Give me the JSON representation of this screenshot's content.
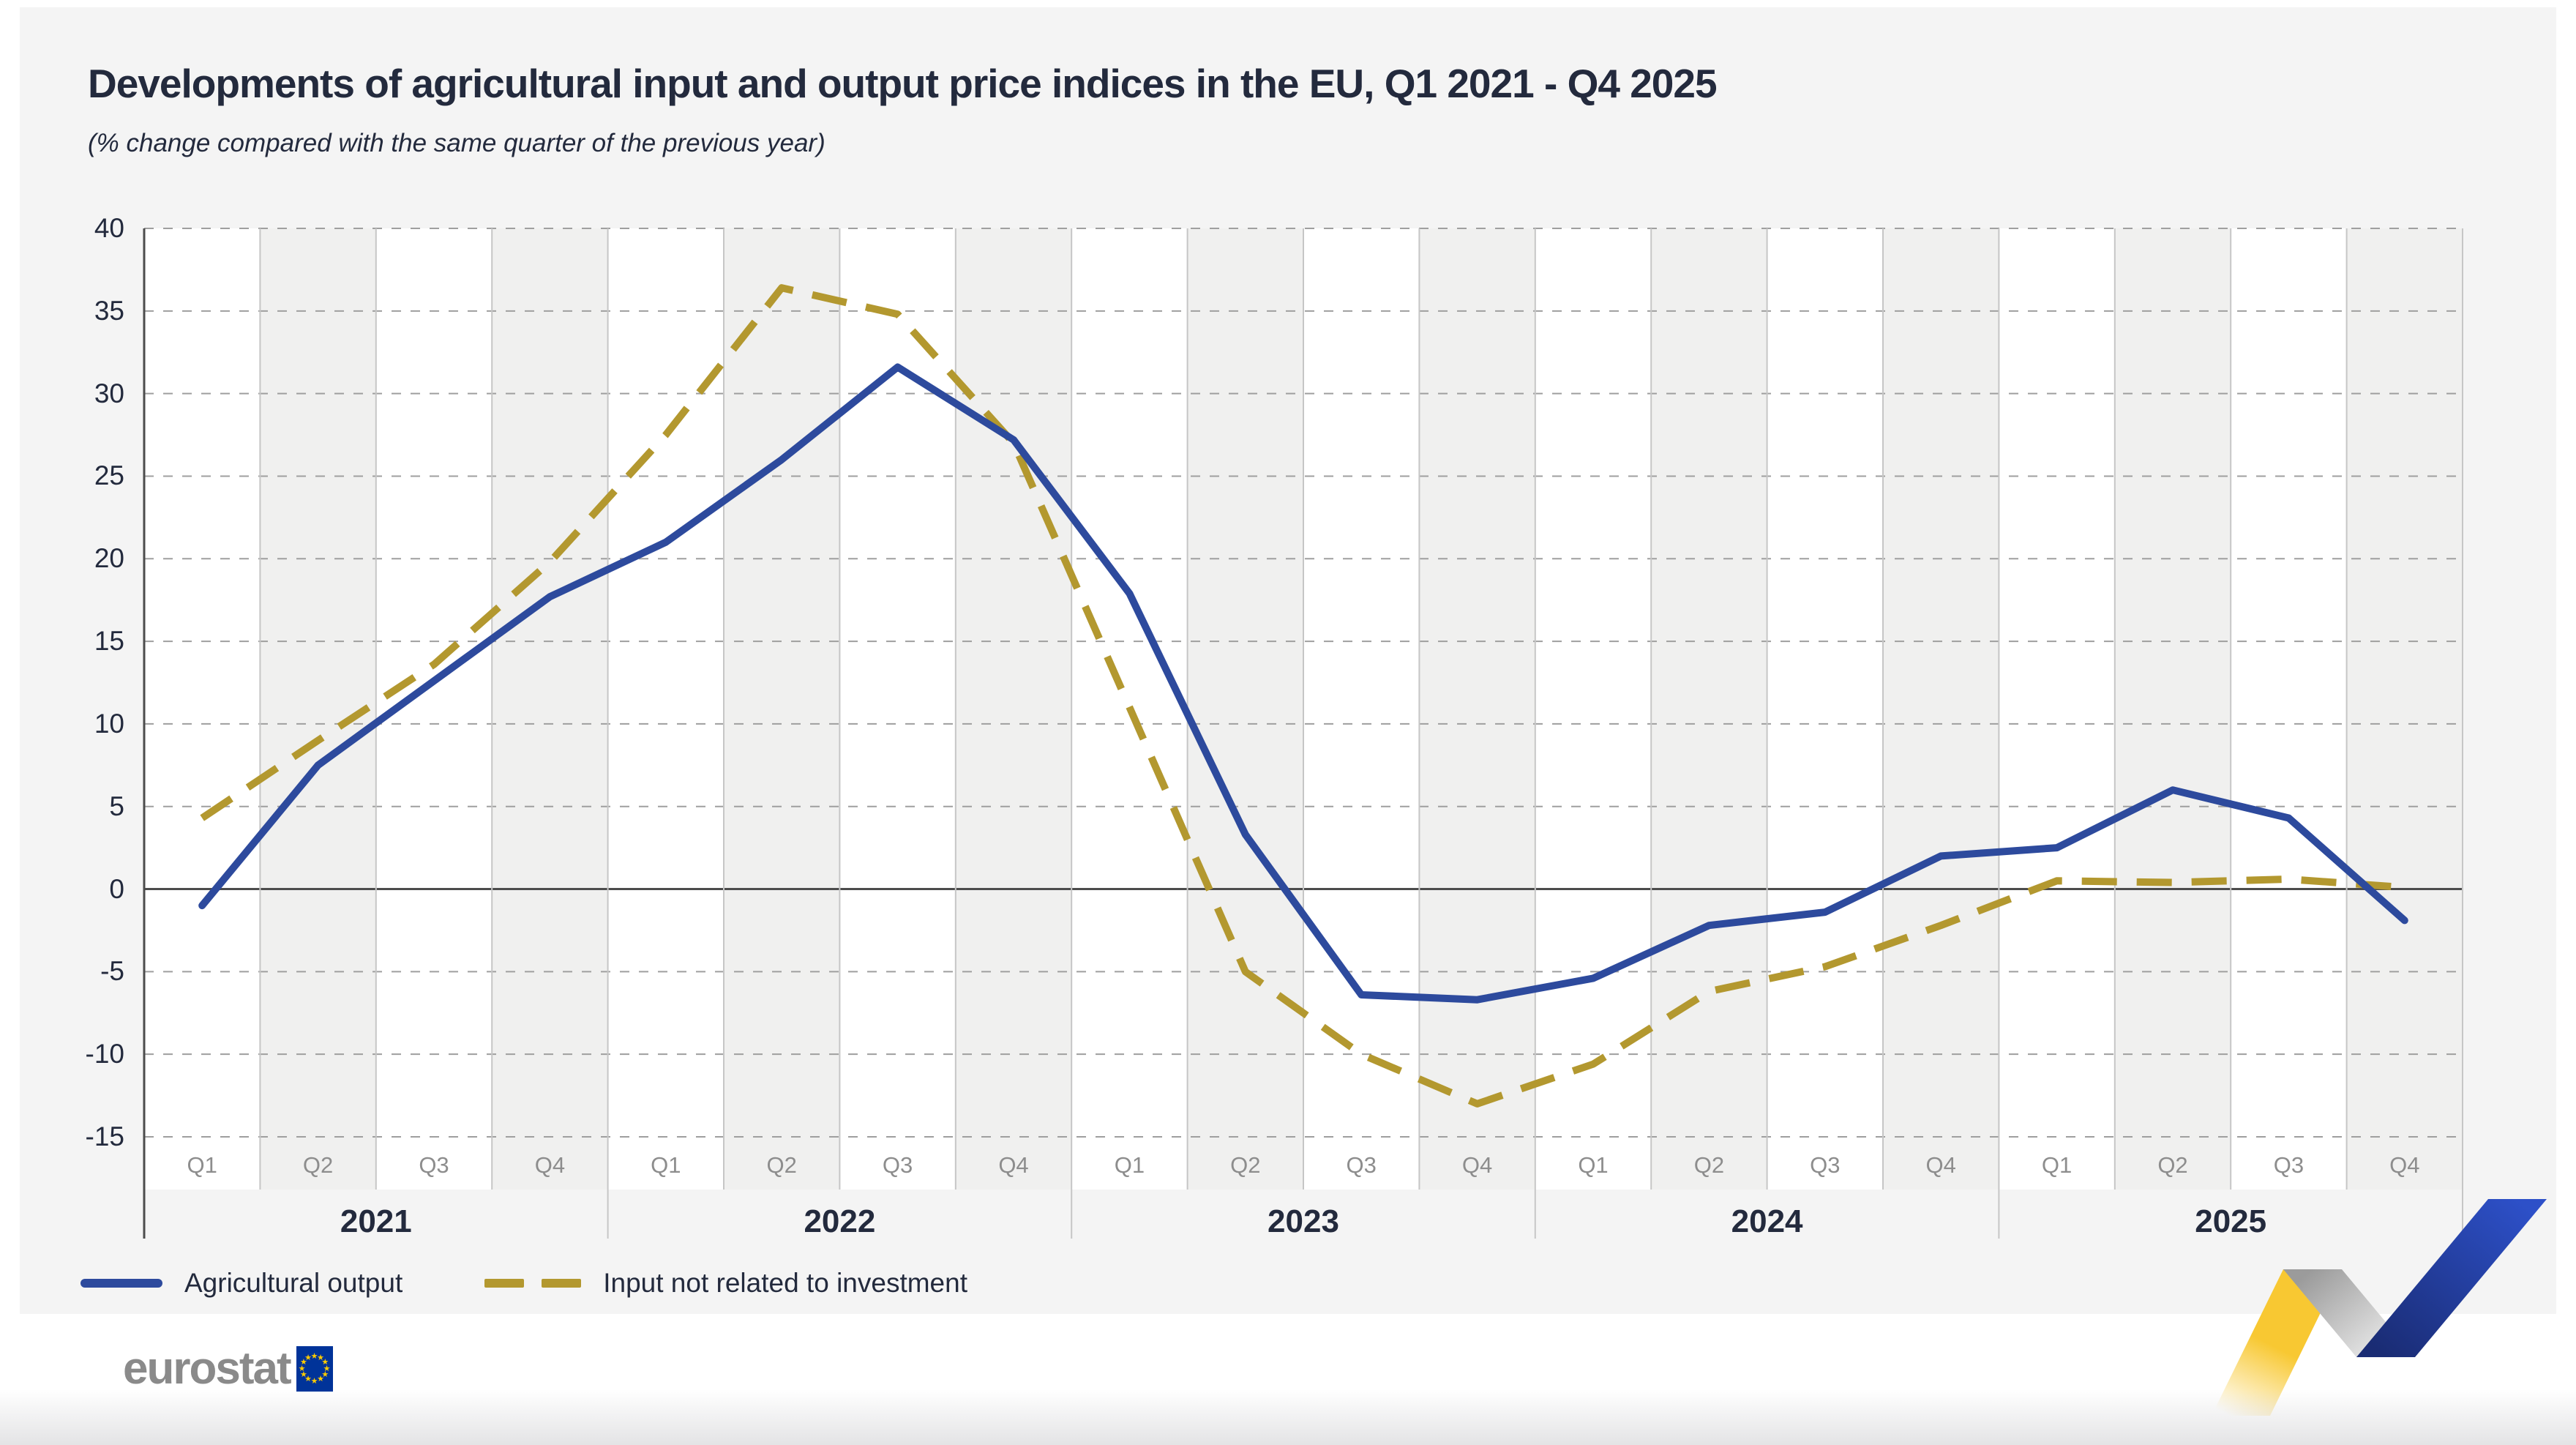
{
  "page": {
    "title": "Developments of agricultural input and output price indices in the EU, Q1 2021 - Q4 2025",
    "subtitle": "(% change compared with the same quarter of the previous year)"
  },
  "chart_data": {
    "type": "line",
    "title": "Developments of agricultural input and output price indices in the EU, Q1 2021 - Q4 2025",
    "subtitle": "(% change compared with the same quarter of the previous year)",
    "xlabel": "",
    "ylabel": "",
    "ylim": [
      -15,
      40
    ],
    "yticks": [
      40,
      35,
      30,
      25,
      20,
      15,
      10,
      5,
      0,
      -5,
      -10,
      -15
    ],
    "grid": "horizontal dashed gridlines, alternating quarter bands, zero line solid",
    "legend_position": "bottom-left",
    "years": [
      "2021",
      "2022",
      "2023",
      "2024",
      "2025"
    ],
    "quarters_per_year": [
      "Q1",
      "Q2",
      "Q3",
      "Q4"
    ],
    "categories": [
      "Q1 2021",
      "Q2 2021",
      "Q3 2021",
      "Q4 2021",
      "Q1 2022",
      "Q2 2022",
      "Q3 2022",
      "Q4 2022",
      "Q1 2023",
      "Q2 2023",
      "Q3 2023",
      "Q4 2023",
      "Q1 2024",
      "Q2 2024",
      "Q3 2024",
      "Q4 2024",
      "Q1 2025",
      "Q2 2025",
      "Q3 2025",
      "Q4 2025"
    ],
    "series": [
      {
        "name": "Agricultural output",
        "style": "solid",
        "color": "#2d4a9d",
        "values": [
          -1.0,
          7.5,
          12.6,
          17.7,
          21.0,
          26.0,
          31.6,
          27.2,
          17.9,
          3.3,
          -6.4,
          -6.7,
          -5.4,
          -2.2,
          -1.4,
          2.0,
          2.5,
          6.0,
          4.3,
          -1.9
        ]
      },
      {
        "name": "Input not related to investment",
        "style": "dashed",
        "color": "#b3982f",
        "values": [
          4.3,
          9.0,
          13.6,
          19.8,
          27.5,
          36.4,
          34.8,
          27.0,
          11.0,
          -5.0,
          -10.0,
          -13.0,
          -10.6,
          -6.2,
          -4.7,
          -2.2,
          0.5,
          0.4,
          0.6,
          0.1
        ]
      }
    ]
  },
  "colors": {
    "accent_blue": "#2d4a9d",
    "accent_gold": "#b3982f",
    "title_text": "#232a3d",
    "card_background": "#f4f4f4",
    "band_white": "#ffffff",
    "band_alt": "#f0f0ef",
    "axis_dark": "#4c4c4c",
    "gridline": "#9f9f9f",
    "quarter_line": "#c6c6c6",
    "quarter_label": "#8d8d8d",
    "logo_gray": "#8a8a8a",
    "eu_flag_blue": "#003399",
    "eu_star_yellow": "#ffcc00",
    "ribbon_yellow": "#f8c832",
    "ribbon_silver_dark": "#9b9b9b",
    "ribbon_silver_light": "#ededed",
    "ribbon_blue_dark": "#1a2c74",
    "ribbon_blue_light": "#2d50c8"
  },
  "branding": {
    "logo_text": "eurostat"
  }
}
